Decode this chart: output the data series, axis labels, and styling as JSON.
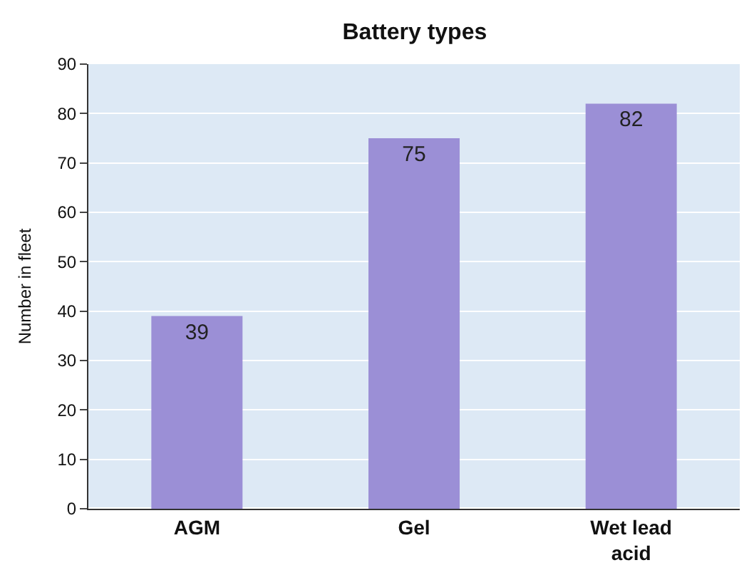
{
  "chart_data": {
    "type": "bar",
    "title": "Battery types",
    "ylabel": "Number in fleet",
    "categories": [
      "AGM",
      "Gel",
      "Wet lead acid"
    ],
    "values": [
      39,
      75,
      82
    ],
    "color": "#9b8fd6",
    "ylim": [
      0,
      90
    ],
    "yticks": [
      0,
      10,
      20,
      30,
      40,
      50,
      60,
      70,
      80,
      90
    ],
    "grid": "y",
    "data_labels": true
  }
}
